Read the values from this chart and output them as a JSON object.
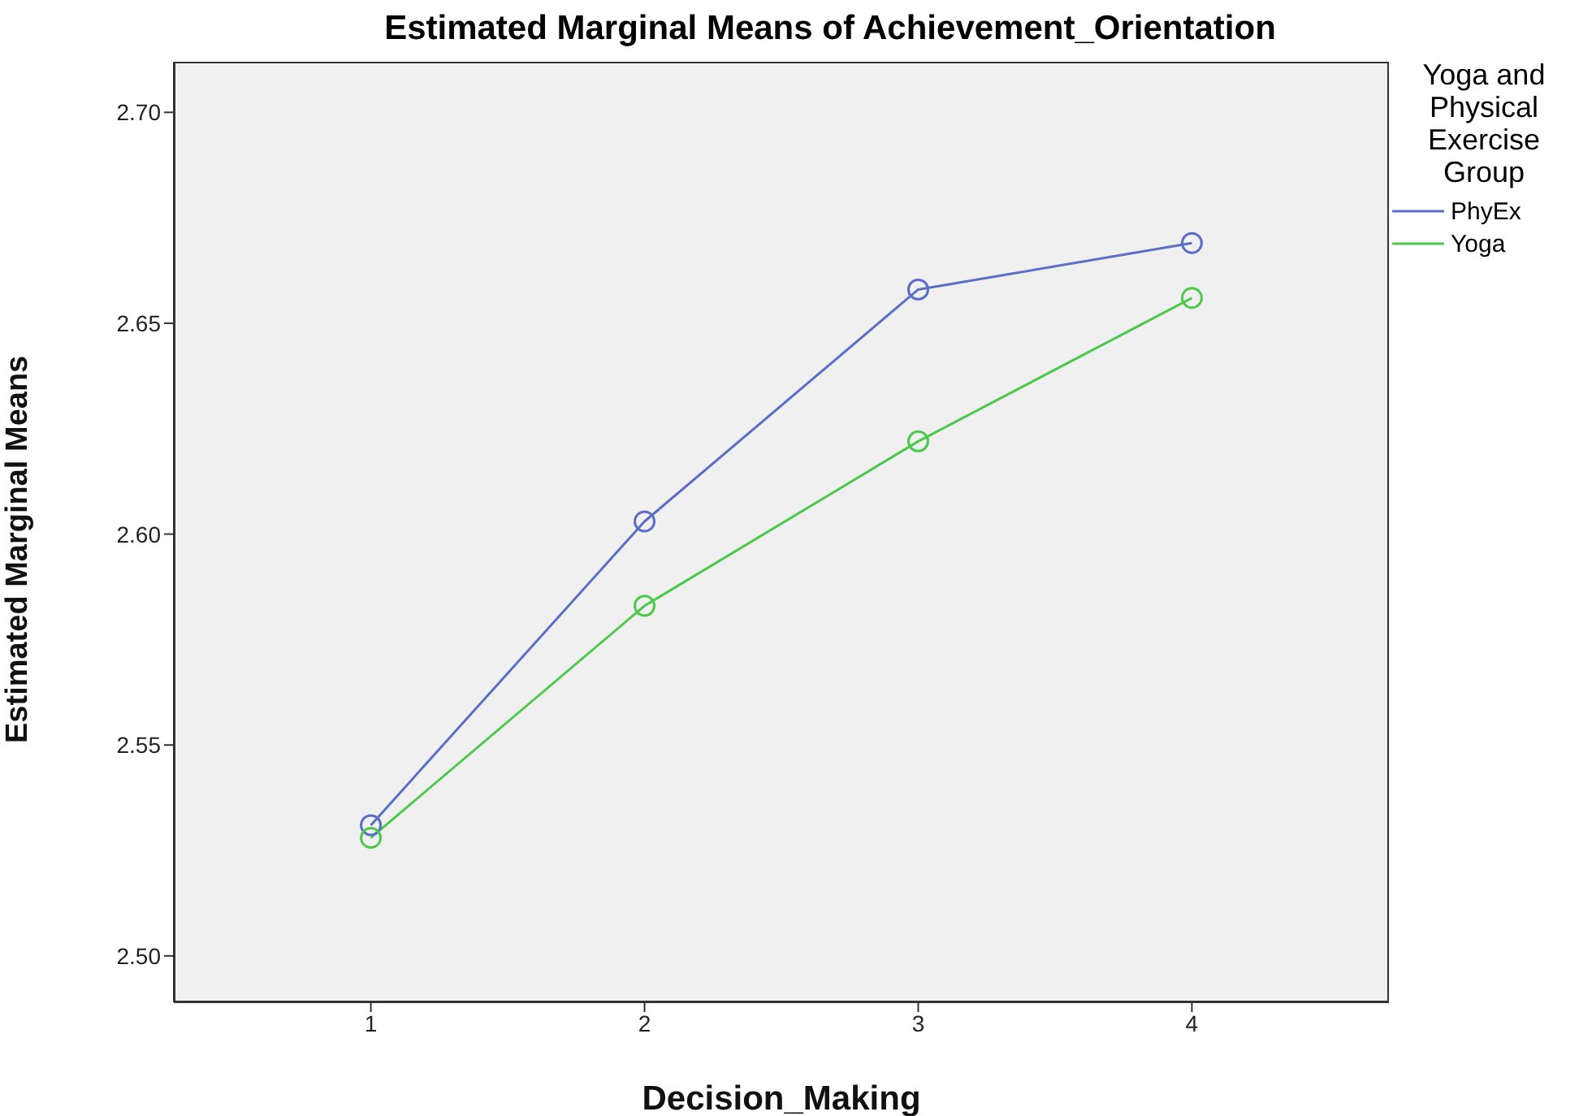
{
  "chart_data": {
    "type": "line",
    "title": "Estimated Marginal Means of Achievement_Orientation",
    "xlabel": "Decision_Making",
    "ylabel": "Estimated Marginal Means",
    "legend_title": "Yoga and Physical Exercise Group",
    "x": [
      1,
      2,
      3,
      4
    ],
    "xlim": [
      0.28,
      4.72
    ],
    "xticks": [
      1,
      2,
      3,
      4
    ],
    "ylim": [
      2.489,
      2.712
    ],
    "yticks": [
      {
        "value": 2.5,
        "label": "2.50"
      },
      {
        "value": 2.55,
        "label": "2.55"
      },
      {
        "value": 2.6,
        "label": "2.60"
      },
      {
        "value": 2.65,
        "label": "2.65"
      },
      {
        "value": 2.7,
        "label": "2.70"
      }
    ],
    "series": [
      {
        "name": "PhyEx",
        "color": "#5b6fc8",
        "values": [
          2.531,
          2.603,
          2.658,
          2.669
        ]
      },
      {
        "name": "Yoga",
        "color": "#4cc94c",
        "values": [
          2.528,
          2.583,
          2.622,
          2.656
        ]
      }
    ],
    "marker": "circle",
    "line_style": "solid",
    "grid": false,
    "legend": "right"
  }
}
